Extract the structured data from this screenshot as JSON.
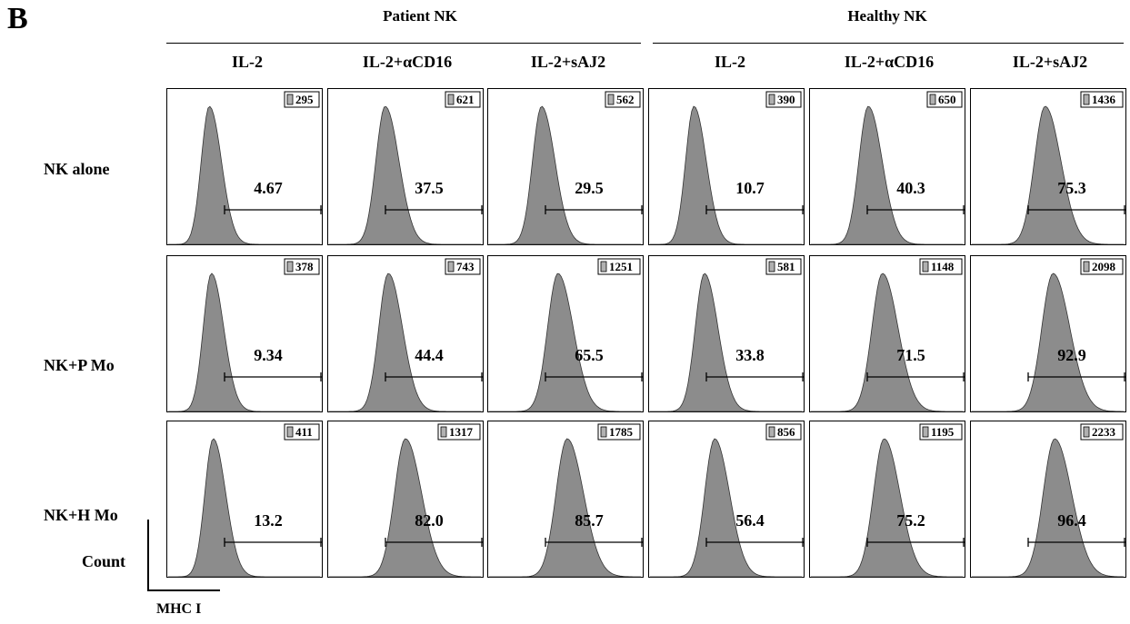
{
  "panel_label": "B",
  "groups": [
    {
      "title": "Patient NK"
    },
    {
      "title": "Healthy NK"
    }
  ],
  "columns": [
    "IL-2",
    "IL-2+αCD16",
    "IL-2+sAJ2",
    "IL-2",
    "IL-2+αCD16",
    "IL-2+sAJ2"
  ],
  "rows": [
    "NK alone",
    "NK+P Mo",
    "NK+H Mo"
  ],
  "axes": {
    "y_label": "Count",
    "x_label": "MHC I"
  },
  "colors": {
    "histogram_fill": "#8c8c8c",
    "frame": "#000000",
    "background": "#ffffff"
  },
  "chart_data": {
    "type": "histogram-grid",
    "description_units": "gated positive percentage and mean fluorescence intensity (MFI) per panel",
    "panels": [
      [
        {
          "percent": "4.67",
          "mfi": "295"
        },
        {
          "percent": "37.5",
          "mfi": "621"
        },
        {
          "percent": "29.5",
          "mfi": "562"
        },
        {
          "percent": "10.7",
          "mfi": "390"
        },
        {
          "percent": "40.3",
          "mfi": "650"
        },
        {
          "percent": "75.3",
          "mfi": "1436"
        }
      ],
      [
        {
          "percent": "9.34",
          "mfi": "378"
        },
        {
          "percent": "44.4",
          "mfi": "743"
        },
        {
          "percent": "65.5",
          "mfi": "1251"
        },
        {
          "percent": "33.8",
          "mfi": "581"
        },
        {
          "percent": "71.5",
          "mfi": "1148"
        },
        {
          "percent": "92.9",
          "mfi": "2098"
        }
      ],
      [
        {
          "percent": "13.2",
          "mfi": "411"
        },
        {
          "percent": "82.0",
          "mfi": "1317"
        },
        {
          "percent": "85.7",
          "mfi": "1785"
        },
        {
          "percent": "56.4",
          "mfi": "856"
        },
        {
          "percent": "75.2",
          "mfi": "1195"
        },
        {
          "percent": "96.4",
          "mfi": "2233"
        }
      ]
    ]
  }
}
